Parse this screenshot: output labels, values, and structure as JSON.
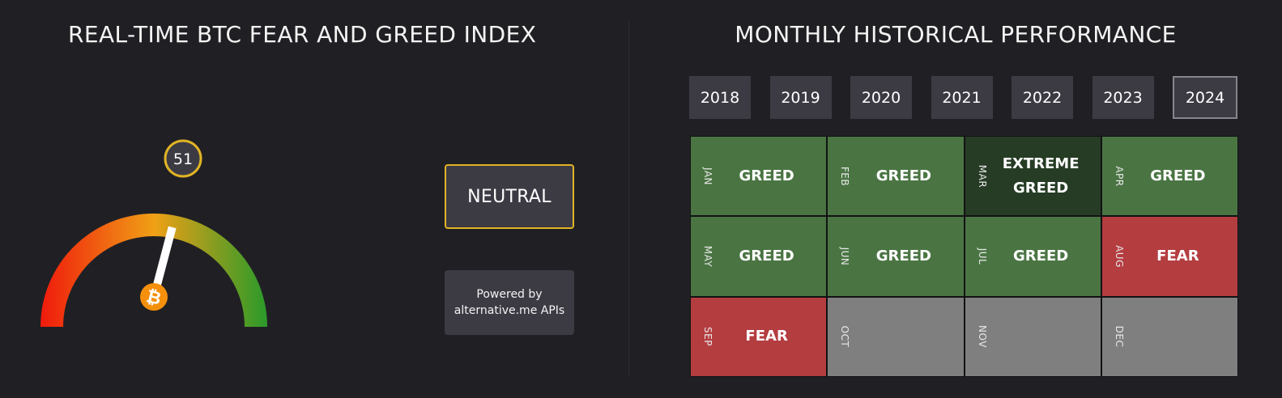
{
  "left": {
    "title": "REAL-TIME BTC FEAR AND GREED INDEX",
    "gauge": {
      "value": 51,
      "value_label": "51",
      "min": 0,
      "max": 100,
      "icon": "bitcoin-icon",
      "coin_symbol": "₿"
    },
    "status": "NEUTRAL",
    "powered_by": {
      "line1": "Powered by",
      "line2": "alternative.me APIs"
    }
  },
  "right": {
    "title": "MONTHLY HISTORICAL PERFORMANCE",
    "years": [
      {
        "label": "2018",
        "active": false
      },
      {
        "label": "2019",
        "active": false
      },
      {
        "label": "2020",
        "active": false
      },
      {
        "label": "2021",
        "active": false
      },
      {
        "label": "2022",
        "active": false
      },
      {
        "label": "2023",
        "active": false
      },
      {
        "label": "2024",
        "active": true
      }
    ],
    "months": [
      {
        "month": "JAN",
        "label": "GREED",
        "color": "#4a7543"
      },
      {
        "month": "FEB",
        "label": "GREED",
        "color": "#4a7543"
      },
      {
        "month": "MAR",
        "label": "EXTREME\nGREED",
        "color": "#263c25"
      },
      {
        "month": "APR",
        "label": "GREED",
        "color": "#4a7543"
      },
      {
        "month": "MAY",
        "label": "GREED",
        "color": "#4a7543"
      },
      {
        "month": "JUN",
        "label": "GREED",
        "color": "#4a7543"
      },
      {
        "month": "JUL",
        "label": "GREED",
        "color": "#4a7543"
      },
      {
        "month": "AUG",
        "label": "FEAR",
        "color": "#b43d40"
      },
      {
        "month": "SEP",
        "label": "FEAR",
        "color": "#b43d40"
      },
      {
        "month": "OCT",
        "label": "",
        "color": "#7f7f7f"
      },
      {
        "month": "NOV",
        "label": "",
        "color": "#7f7f7f"
      },
      {
        "month": "DEC",
        "label": "",
        "color": "#7f7f7f"
      }
    ]
  },
  "colors": {
    "background": "#202024",
    "box": "#3c3b44",
    "accent_gold": "#e1b425",
    "gauge_red": "#f01a0c",
    "gauge_orange": "#f0a016",
    "gauge_green": "#2a9a2a",
    "bitcoin_orange": "#f4900c"
  }
}
